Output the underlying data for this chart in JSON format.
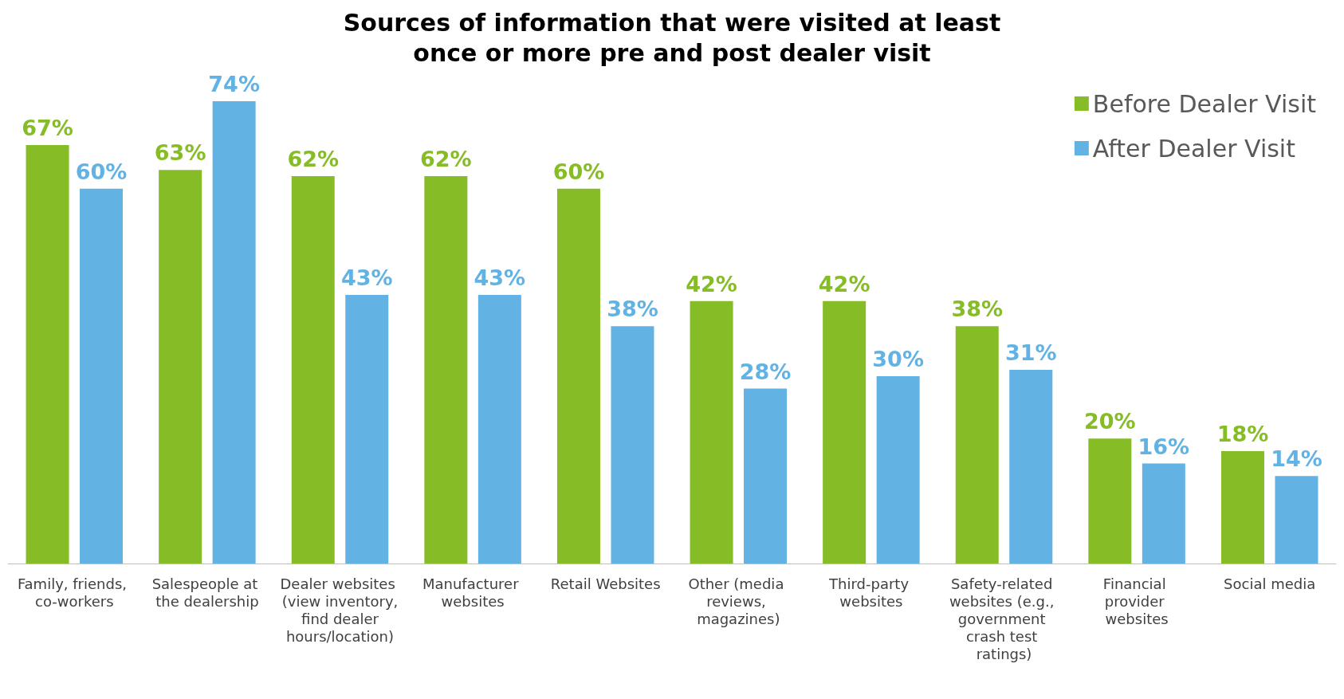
{
  "chart_data": {
    "type": "bar",
    "title": "Sources of information that were visited at least\nonce or more pre and post dealer visit",
    "categories": [
      "Family, friends, co-workers",
      "Salespeople at the dealership",
      "Dealer websites (view inventory, find dealer hours/location)",
      "Manufacturer websites",
      "Retail Websites",
      "Other (media reviews, magazines)",
      "Third-party websites",
      "Safety-related websites (e.g., government crash test ratings)",
      "Financial provider websites",
      "Social media"
    ],
    "series": [
      {
        "name": "Before Dealer Visit",
        "color": "#86bc25",
        "values": [
          67,
          63,
          62,
          62,
          60,
          42,
          42,
          38,
          20,
          18
        ],
        "value_labels": [
          "67%",
          "63%",
          "62%",
          "62%",
          "60%",
          "42%",
          "42%",
          "38%",
          "20%",
          "18%"
        ]
      },
      {
        "name": "After Dealer Visit",
        "color": "#62b3e4",
        "values": [
          60,
          74,
          43,
          43,
          38,
          28,
          30,
          31,
          16,
          14
        ],
        "value_labels": [
          "60%",
          "74%",
          "43%",
          "43%",
          "38%",
          "28%",
          "30%",
          "31%",
          "16%",
          "14%"
        ]
      }
    ],
    "legend": "top right"
  }
}
